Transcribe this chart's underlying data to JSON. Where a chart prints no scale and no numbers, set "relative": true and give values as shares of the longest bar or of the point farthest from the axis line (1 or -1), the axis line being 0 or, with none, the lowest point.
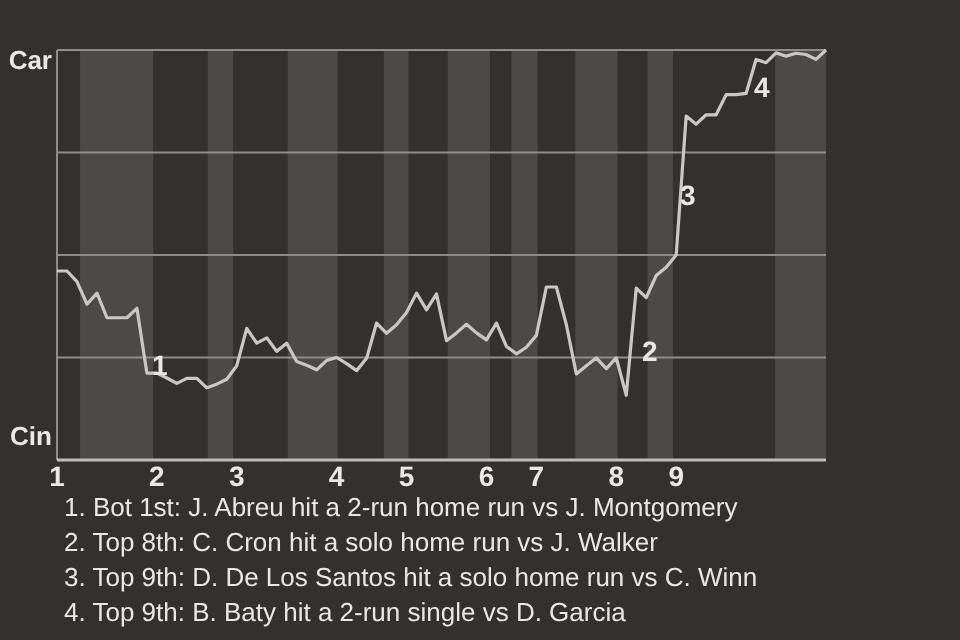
{
  "chart_data": {
    "type": "line",
    "relative": true,
    "categories": [
      "1",
      null,
      null,
      null,
      null,
      null,
      null,
      null,
      null,
      null,
      "2",
      null,
      null,
      null,
      null,
      null,
      null,
      null,
      "3",
      null,
      null,
      null,
      null,
      null,
      null,
      null,
      null,
      null,
      "4",
      null,
      null,
      null,
      null,
      null,
      null,
      "5",
      null,
      null,
      null,
      null,
      null,
      null,
      null,
      "6",
      null,
      null,
      null,
      null,
      "7",
      null,
      null,
      null,
      null,
      null,
      null,
      null,
      "8",
      null,
      null,
      null,
      null,
      null,
      "9",
      null,
      null,
      null,
      null,
      null,
      null,
      null,
      null,
      null,
      null,
      null,
      null,
      null,
      null,
      null
    ],
    "series": [
      {
        "color": "#c8c8c6",
        "values": [
          0.461,
          0.461,
          0.435,
          0.38,
          0.407,
          0.347,
          0.347,
          0.347,
          0.37,
          0.212,
          0.212,
          0.2,
          0.187,
          0.199,
          0.199,
          0.176,
          0.185,
          0.197,
          0.23,
          0.321,
          0.285,
          0.298,
          0.265,
          0.285,
          0.24,
          0.231,
          0.22,
          0.243,
          0.25,
          0.235,
          0.218,
          0.248,
          0.334,
          0.309,
          0.33,
          0.36,
          0.407,
          0.366,
          0.405,
          0.291,
          0.31,
          0.331,
          0.31,
          0.293,
          0.334,
          0.277,
          0.259,
          0.275,
          0.304,
          0.422,
          0.422,
          0.33,
          0.21,
          0.23,
          0.249,
          0.223,
          0.249,
          0.158,
          0.419,
          0.396,
          0.45,
          0.47,
          0.5,
          0.839,
          0.819,
          0.842,
          0.842,
          0.891,
          0.891,
          0.894,
          0.977,
          0.969,
          0.993,
          0.985,
          0.992,
          0.989,
          0.977,
          1.0
        ]
      }
    ],
    "grid": "y",
    "annotations": [
      "Car",
      "Cin",
      "1",
      "2",
      "3",
      "4",
      "1. Bot 1st: J. Abreu hit a 2-run home run vs J. Montgomery",
      "2. Top 8th: C. Cron hit a solo home run vs J. Walker",
      "3. Top 9th: D. De Los Santos hit a solo home run vs C. Winn",
      "4. Top 9th: B. Baty hit a 2-run single vs D. Garcia"
    ]
  }
}
